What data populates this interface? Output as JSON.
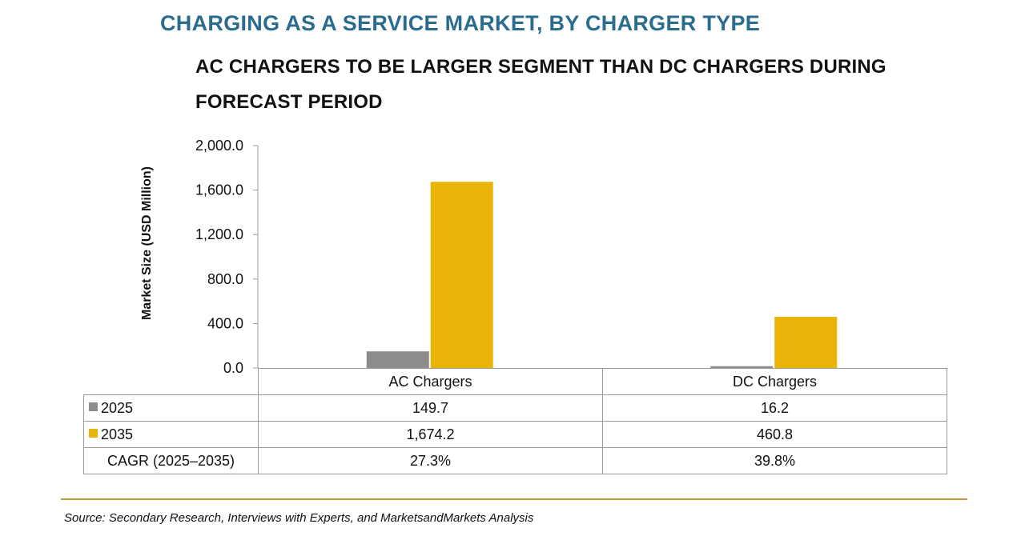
{
  "header": {
    "title": "CHARGING AS A SERVICE MARKET, BY CHARGER TYPE",
    "subtitle": "AC CHARGERS TO BE LARGER SEGMENT THAN DC CHARGERS DURING FORECAST PERIOD"
  },
  "colors": {
    "title": "#2a6c8e",
    "series_2025": "#8c8c8c",
    "series_2035": "#eab308",
    "divider": "#b89a3e"
  },
  "chart_data": {
    "type": "bar",
    "title": "CHARGING AS A SERVICE MARKET, BY CHARGER TYPE",
    "subtitle": "AC CHARGERS TO BE LARGER SEGMENT THAN DC CHARGERS DURING FORECAST PERIOD",
    "ylabel": "Market Size (USD Million)",
    "xlabel": "",
    "ylim": [
      0,
      2000
    ],
    "yticks": [
      "0.0",
      "400.0",
      "800.0",
      "1,200.0",
      "1,600.0",
      "2,000.0"
    ],
    "ytick_values": [
      0,
      400,
      800,
      1200,
      1600,
      2000
    ],
    "categories": [
      "AC Chargers",
      "DC Chargers"
    ],
    "series": [
      {
        "name": "2025",
        "values": [
          149.7,
          16.2
        ],
        "labels": [
          "149.7",
          "16.2"
        ],
        "color": "#8c8c8c"
      },
      {
        "name": "2035",
        "values": [
          1674.2,
          460.8
        ],
        "labels": [
          "1,674.2",
          "460.8"
        ],
        "color": "#eab308"
      }
    ],
    "cagr": {
      "label": "CAGR (2025–2035)",
      "values": [
        "27.3%",
        "39.8%"
      ]
    },
    "grid": false,
    "legend": "data-table"
  },
  "footer": {
    "source": "Source: Secondary Research, Interviews with Experts, and MarketsandMarkets Analysis"
  }
}
